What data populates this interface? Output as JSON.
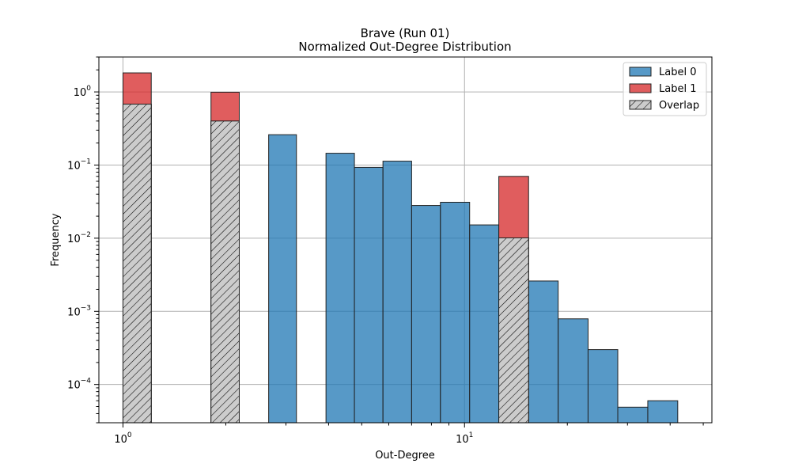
{
  "chart_data": {
    "type": "bar",
    "title": "Brave (Run 01)",
    "subtitle": "Normalized Out-Degree Distribution",
    "xlabel": "Out-Degree",
    "ylabel": "Frequency",
    "x_scale": "log",
    "y_scale": "log",
    "xlim": [
      0.85,
      53
    ],
    "ylim": [
      3e-05,
      3.0
    ],
    "grid": true,
    "legend_position": "top-right",
    "x_ticks": [
      {
        "value": 1,
        "base": "10",
        "exp": "0"
      },
      {
        "value": 10,
        "base": "10",
        "exp": "1"
      }
    ],
    "y_ticks": [
      {
        "value": 1,
        "base": "10",
        "exp": "0"
      },
      {
        "value": 0.1,
        "base": "10",
        "exp": "−1"
      },
      {
        "value": 0.01,
        "base": "10",
        "exp": "−2"
      },
      {
        "value": 0.001,
        "base": "10",
        "exp": "−3"
      },
      {
        "value": 0.0001,
        "base": "10",
        "exp": "−4"
      }
    ],
    "series": [
      {
        "name": "Label 0",
        "color": "#1f77b4",
        "bars": [
          {
            "x0": 1.0,
            "x1": 1.21,
            "y": 0.68
          },
          {
            "x0": 1.81,
            "x1": 2.19,
            "y": 0.4
          },
          {
            "x0": 2.67,
            "x1": 3.22,
            "y": 0.26
          },
          {
            "x0": 3.93,
            "x1": 4.76,
            "y": 0.145
          },
          {
            "x0": 4.76,
            "x1": 5.77,
            "y": 0.093
          },
          {
            "x0": 5.77,
            "x1": 7.0,
            "y": 0.113
          },
          {
            "x0": 7.0,
            "x1": 8.5,
            "y": 0.028
          },
          {
            "x0": 8.5,
            "x1": 10.35,
            "y": 0.031
          },
          {
            "x0": 10.35,
            "x1": 12.6,
            "y": 0.0152
          },
          {
            "x0": 12.6,
            "x1": 15.4,
            "y": 0.0101
          },
          {
            "x0": 15.4,
            "x1": 18.8,
            "y": 0.0026
          },
          {
            "x0": 18.8,
            "x1": 23.0,
            "y": 0.00079
          },
          {
            "x0": 23.0,
            "x1": 28.1,
            "y": 0.0003
          },
          {
            "x0": 28.1,
            "x1": 34.4,
            "y": 4.9e-05
          },
          {
            "x0": 34.4,
            "x1": 42.1,
            "y": 6e-05
          }
        ]
      },
      {
        "name": "Label 1",
        "color": "#d62728",
        "bars": [
          {
            "x0": 1.0,
            "x1": 1.21,
            "y": 1.82
          },
          {
            "x0": 1.81,
            "x1": 2.19,
            "y": 0.99
          },
          {
            "x0": 12.6,
            "x1": 15.4,
            "y": 0.07
          }
        ]
      },
      {
        "name": "Overlap",
        "color": "#cccccc",
        "hatch": "///",
        "bars": [
          {
            "x0": 1.0,
            "x1": 1.21,
            "y": 0.68
          },
          {
            "x0": 1.81,
            "x1": 2.19,
            "y": 0.4
          },
          {
            "x0": 12.6,
            "x1": 15.4,
            "y": 0.0101
          }
        ]
      }
    ]
  }
}
